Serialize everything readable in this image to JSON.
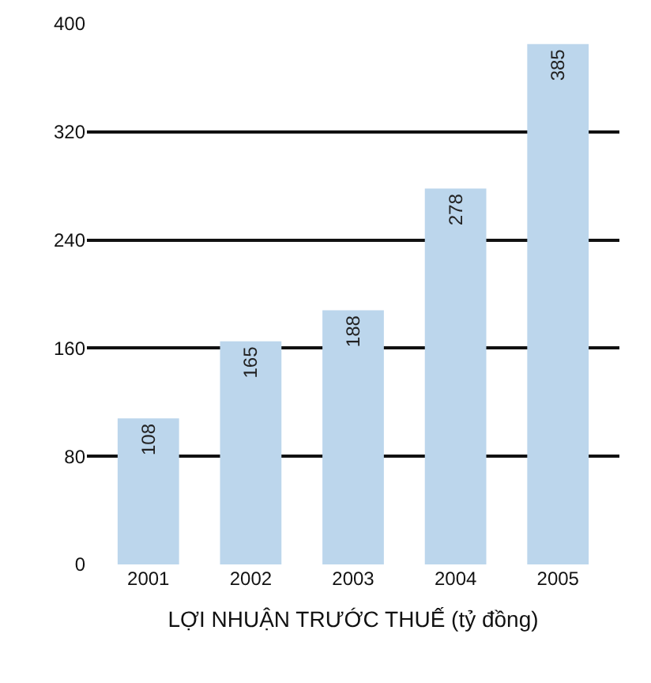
{
  "chart_data": {
    "type": "bar",
    "xlabel": "LỢI NHUẬN TRƯỚC THUẾ (tỷ đồng)",
    "categories": [
      "2001",
      "2002",
      "2003",
      "2004",
      "2005"
    ],
    "values": [
      108,
      165,
      188,
      278,
      385
    ],
    "color": "#bcd6ec",
    "ylim": [
      0,
      400
    ],
    "yticks": [
      0,
      80,
      160,
      240,
      320,
      400
    ],
    "grid": "y",
    "data_labels": true
  }
}
